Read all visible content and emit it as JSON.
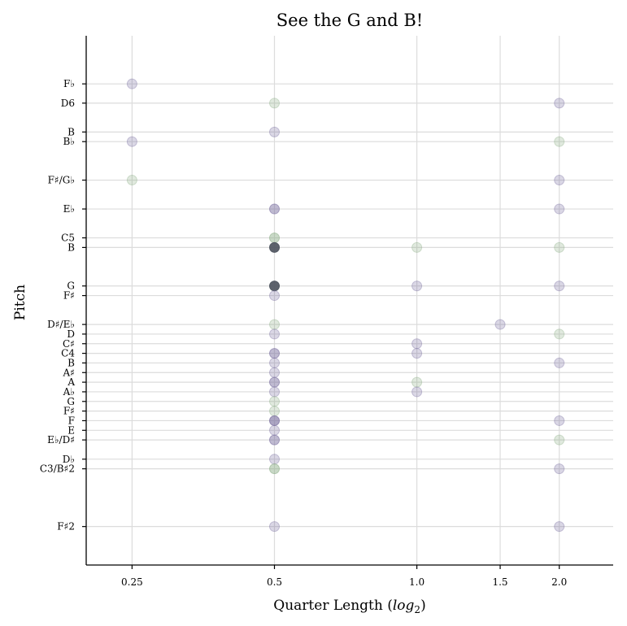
{
  "chart_data": {
    "type": "scatter",
    "title": "See the G and B!",
    "xlabel": "Quarter Length (log2)",
    "ylabel": "Pitch",
    "x_scale": "log2",
    "xlim": [
      0.2,
      2.6
    ],
    "ylim": [
      38,
      93
    ],
    "grid": true,
    "x_ticks": [
      {
        "value": 0.25,
        "label": "0.25"
      },
      {
        "value": 0.5,
        "label": "0.5"
      },
      {
        "value": 1.0,
        "label": "1.0"
      },
      {
        "value": 1.5,
        "label": "1.5"
      },
      {
        "value": 2.0,
        "label": "2.0"
      }
    ],
    "y_ticks": [
      {
        "value": 42,
        "label": "F♯2"
      },
      {
        "value": 48,
        "label": "C3/B♯2"
      },
      {
        "value": 49,
        "label": "D♭"
      },
      {
        "value": 51,
        "label": "E♭/D♯"
      },
      {
        "value": 52,
        "label": "E"
      },
      {
        "value": 53,
        "label": "F"
      },
      {
        "value": 54,
        "label": "F♯"
      },
      {
        "value": 55,
        "label": "G"
      },
      {
        "value": 56,
        "label": "A♭"
      },
      {
        "value": 57,
        "label": "A"
      },
      {
        "value": 58,
        "label": "A♯"
      },
      {
        "value": 59,
        "label": "B"
      },
      {
        "value": 60,
        "label": "C4"
      },
      {
        "value": 61,
        "label": "C♯"
      },
      {
        "value": 62,
        "label": "D"
      },
      {
        "value": 63,
        "label": "D♯/E♭"
      },
      {
        "value": 66,
        "label": "F♯"
      },
      {
        "value": 67,
        "label": "G"
      },
      {
        "value": 71,
        "label": "B"
      },
      {
        "value": 72,
        "label": "C5"
      },
      {
        "value": 75,
        "label": "E♭"
      },
      {
        "value": 78,
        "label": "F♯/G♭"
      },
      {
        "value": 82,
        "label": "B♭"
      },
      {
        "value": 83,
        "label": "B"
      },
      {
        "value": 86,
        "label": "D6"
      },
      {
        "value": 88,
        "label": "F♭"
      }
    ],
    "colors": {
      "purple": "#7a6fa0",
      "green": "#8fb08a",
      "dark": "#4f5560"
    },
    "points": [
      {
        "x": 0.25,
        "y": 88,
        "color": "purple"
      },
      {
        "x": 0.25,
        "y": 82,
        "color": "purple"
      },
      {
        "x": 0.25,
        "y": 78,
        "color": "green"
      },
      {
        "x": 0.5,
        "y": 86,
        "color": "green"
      },
      {
        "x": 0.5,
        "y": 83,
        "color": "purple"
      },
      {
        "x": 0.5,
        "y": 75,
        "color": "purple",
        "count": 2
      },
      {
        "x": 0.5,
        "y": 72,
        "color": "green",
        "count": 2
      },
      {
        "x": 0.5,
        "y": 71,
        "color": "dark",
        "count": 10
      },
      {
        "x": 0.5,
        "y": 67,
        "color": "dark",
        "count": 10
      },
      {
        "x": 0.5,
        "y": 66,
        "color": "purple"
      },
      {
        "x": 0.5,
        "y": 63,
        "color": "green"
      },
      {
        "x": 0.5,
        "y": 62,
        "color": "purple"
      },
      {
        "x": 0.5,
        "y": 60,
        "color": "purple",
        "count": 2
      },
      {
        "x": 0.5,
        "y": 59,
        "color": "purple"
      },
      {
        "x": 0.5,
        "y": 58,
        "color": "purple"
      },
      {
        "x": 0.5,
        "y": 57,
        "color": "purple",
        "count": 2
      },
      {
        "x": 0.5,
        "y": 56,
        "color": "purple"
      },
      {
        "x": 0.5,
        "y": 55,
        "color": "green"
      },
      {
        "x": 0.5,
        "y": 54,
        "color": "green"
      },
      {
        "x": 0.5,
        "y": 53,
        "color": "purple",
        "count": 3
      },
      {
        "x": 0.5,
        "y": 52,
        "color": "purple"
      },
      {
        "x": 0.5,
        "y": 51,
        "color": "purple",
        "count": 2
      },
      {
        "x": 0.5,
        "y": 49,
        "color": "purple"
      },
      {
        "x": 0.5,
        "y": 48,
        "color": "green",
        "count": 2
      },
      {
        "x": 0.5,
        "y": 42,
        "color": "purple"
      },
      {
        "x": 1.0,
        "y": 71,
        "color": "green"
      },
      {
        "x": 1.0,
        "y": 67,
        "color": "purple"
      },
      {
        "x": 1.0,
        "y": 61,
        "color": "purple"
      },
      {
        "x": 1.0,
        "y": 60,
        "color": "purple"
      },
      {
        "x": 1.0,
        "y": 57,
        "color": "green"
      },
      {
        "x": 1.0,
        "y": 56,
        "color": "purple"
      },
      {
        "x": 1.5,
        "y": 63,
        "color": "purple"
      },
      {
        "x": 2.0,
        "y": 86,
        "color": "purple"
      },
      {
        "x": 2.0,
        "y": 82,
        "color": "green"
      },
      {
        "x": 2.0,
        "y": 78,
        "color": "purple"
      },
      {
        "x": 2.0,
        "y": 75,
        "color": "purple"
      },
      {
        "x": 2.0,
        "y": 71,
        "color": "green"
      },
      {
        "x": 2.0,
        "y": 67,
        "color": "purple"
      },
      {
        "x": 2.0,
        "y": 62,
        "color": "green"
      },
      {
        "x": 2.0,
        "y": 59,
        "color": "purple"
      },
      {
        "x": 2.0,
        "y": 53,
        "color": "purple"
      },
      {
        "x": 2.0,
        "y": 51,
        "color": "green"
      },
      {
        "x": 2.0,
        "y": 48,
        "color": "purple"
      },
      {
        "x": 2.0,
        "y": 42,
        "color": "purple"
      }
    ]
  }
}
